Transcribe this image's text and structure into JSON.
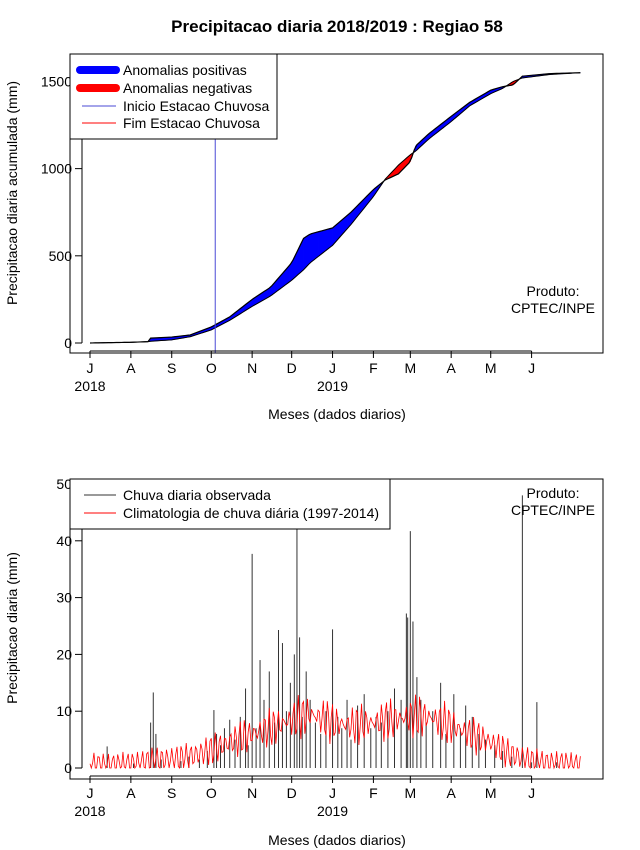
{
  "colors": {
    "positive": "#0000ff",
    "negative": "#ff0000",
    "season_start": "#4a4ad6",
    "season_end": "#ff0000",
    "observed": "#333333",
    "climatology": "#ff0000"
  },
  "chart_data": [
    {
      "type": "area",
      "title": "Precipitacao diaria 2018/2019 : Regiao 58",
      "xlabel": "Meses (dados diarios)",
      "ylabel": "Precipitacao diaria acumulada (mm)",
      "x_start": "2018-07-01",
      "x_end": "2019-07-10",
      "ylim": [
        0,
        1600
      ],
      "yticks": [
        0,
        500,
        1000,
        1500
      ],
      "xticks": [
        {
          "label": "J",
          "date": "2018-07-01"
        },
        {
          "label": "A",
          "date": "2018-08-01"
        },
        {
          "label": "S",
          "date": "2018-09-01"
        },
        {
          "label": "O",
          "date": "2018-10-01"
        },
        {
          "label": "N",
          "date": "2018-11-01"
        },
        {
          "label": "D",
          "date": "2018-12-01"
        },
        {
          "label": "J",
          "date": "2019-01-01"
        },
        {
          "label": "F",
          "date": "2019-02-01"
        },
        {
          "label": "M",
          "date": "2019-03-01"
        },
        {
          "label": "A",
          "date": "2019-04-01"
        },
        {
          "label": "M",
          "date": "2019-05-01"
        },
        {
          "label": "J",
          "date": "2019-06-01"
        }
      ],
      "year_labels": [
        {
          "label": "2018",
          "date": "2018-07-01"
        },
        {
          "label": "2019",
          "date": "2019-01-01"
        }
      ],
      "legend": [
        {
          "label": "Anomalias positivas",
          "style": "thick",
          "color": "#0000ff"
        },
        {
          "label": "Anomalias negativas",
          "style": "thick",
          "color": "#ff0000"
        },
        {
          "label": "Inicio Estacao Chuvosa",
          "style": "thin",
          "color": "#4a4ad6"
        },
        {
          "label": "Fim Estacao Chuvosa",
          "style": "thin",
          "color": "#ff0000"
        }
      ],
      "legend_position": "top-left",
      "annotation": [
        "Produto:",
        "CPTEC/INPE"
      ],
      "season_start": "2018-10-04",
      "observed_cumulative": [
        [
          "2018-07-01",
          0
        ],
        [
          "2018-07-15",
          2
        ],
        [
          "2018-08-01",
          4
        ],
        [
          "2018-08-15",
          8
        ],
        [
          "2018-08-16",
          28
        ],
        [
          "2018-09-01",
          34
        ],
        [
          "2018-09-15",
          46
        ],
        [
          "2018-10-01",
          92
        ],
        [
          "2018-10-15",
          150
        ],
        [
          "2018-11-01",
          250
        ],
        [
          "2018-11-15",
          320
        ],
        [
          "2018-12-01",
          460
        ],
        [
          "2018-12-10",
          600
        ],
        [
          "2018-12-15",
          625
        ],
        [
          "2019-01-01",
          660
        ],
        [
          "2019-01-15",
          750
        ],
        [
          "2019-02-01",
          880
        ],
        [
          "2019-02-10",
          935
        ],
        [
          "2019-02-20",
          970
        ],
        [
          "2019-03-01",
          1040
        ],
        [
          "2019-03-05",
          1130
        ],
        [
          "2019-03-15",
          1200
        ],
        [
          "2019-04-01",
          1300
        ],
        [
          "2019-04-15",
          1380
        ],
        [
          "2019-05-01",
          1450
        ],
        [
          "2019-05-10",
          1470
        ],
        [
          "2019-05-18",
          1480
        ],
        [
          "2019-05-25",
          1530
        ],
        [
          "2019-06-15",
          1545
        ],
        [
          "2019-07-08",
          1550
        ]
      ],
      "climatology_cumulative": [
        [
          "2018-07-01",
          0
        ],
        [
          "2018-07-15",
          2
        ],
        [
          "2018-08-01",
          4
        ],
        [
          "2018-08-15",
          8
        ],
        [
          "2018-08-16",
          10
        ],
        [
          "2018-09-01",
          18
        ],
        [
          "2018-09-15",
          36
        ],
        [
          "2018-10-01",
          75
        ],
        [
          "2018-10-15",
          130
        ],
        [
          "2018-11-01",
          210
        ],
        [
          "2018-11-15",
          270
        ],
        [
          "2018-12-01",
          360
        ],
        [
          "2018-12-10",
          420
        ],
        [
          "2018-12-15",
          460
        ],
        [
          "2019-01-01",
          560
        ],
        [
          "2019-01-15",
          680
        ],
        [
          "2019-02-01",
          840
        ],
        [
          "2019-02-10",
          940
        ],
        [
          "2019-02-20",
          1020
        ],
        [
          "2019-03-01",
          1080
        ],
        [
          "2019-03-05",
          1100
        ],
        [
          "2019-03-15",
          1170
        ],
        [
          "2019-04-01",
          1270
        ],
        [
          "2019-04-15",
          1360
        ],
        [
          "2019-05-01",
          1430
        ],
        [
          "2019-05-10",
          1460
        ],
        [
          "2019-05-18",
          1500
        ],
        [
          "2019-05-25",
          1520
        ],
        [
          "2019-06-15",
          1540
        ],
        [
          "2019-07-08",
          1550
        ]
      ]
    },
    {
      "type": "bar",
      "xlabel": "Meses (dados diarios)",
      "ylabel": "Precipitacao diaria (mm)",
      "x_start": "2018-07-01",
      "x_end": "2019-07-10",
      "ylim": [
        0,
        50
      ],
      "yticks": [
        0,
        10,
        20,
        30,
        40,
        50
      ],
      "xticks": [
        {
          "label": "J",
          "date": "2018-07-01"
        },
        {
          "label": "A",
          "date": "2018-08-01"
        },
        {
          "label": "S",
          "date": "2018-09-01"
        },
        {
          "label": "O",
          "date": "2018-10-01"
        },
        {
          "label": "N",
          "date": "2018-11-01"
        },
        {
          "label": "D",
          "date": "2018-12-01"
        },
        {
          "label": "J",
          "date": "2019-01-01"
        },
        {
          "label": "F",
          "date": "2019-02-01"
        },
        {
          "label": "M",
          "date": "2019-03-01"
        },
        {
          "label": "A",
          "date": "2019-04-01"
        },
        {
          "label": "M",
          "date": "2019-05-01"
        },
        {
          "label": "J",
          "date": "2019-06-01"
        }
      ],
      "year_labels": [
        {
          "label": "2018",
          "date": "2018-07-01"
        },
        {
          "label": "2019",
          "date": "2019-01-01"
        }
      ],
      "legend": [
        {
          "label": "Chuva diaria observada",
          "color": "#333333"
        },
        {
          "label": "Climatologia de chuva diária (1997-2014)",
          "color": "#ff0000"
        }
      ],
      "legend_position": "top-left",
      "annotation": [
        "Produto:",
        "CPTEC/INPE"
      ],
      "observed_daily": [
        [
          "2018-07-14",
          3.8
        ],
        [
          "2018-08-03",
          0.8
        ],
        [
          "2018-08-16",
          8.0
        ],
        [
          "2018-08-18",
          13.3
        ],
        [
          "2018-08-20",
          6.0
        ],
        [
          "2018-08-24",
          1.5
        ],
        [
          "2018-09-08",
          1.2
        ],
        [
          "2018-09-14",
          2.0
        ],
        [
          "2018-09-22",
          1.5
        ],
        [
          "2018-09-28",
          3.0
        ],
        [
          "2018-10-03",
          10.2
        ],
        [
          "2018-10-05",
          6.0
        ],
        [
          "2018-10-08",
          4.0
        ],
        [
          "2018-10-11",
          7.0
        ],
        [
          "2018-10-15",
          8.5
        ],
        [
          "2018-10-19",
          5.0
        ],
        [
          "2018-10-23",
          9.0
        ],
        [
          "2018-10-27",
          14.0
        ],
        [
          "2018-10-29",
          4.0
        ],
        [
          "2018-11-01",
          37.7
        ],
        [
          "2018-11-04",
          7.0
        ],
        [
          "2018-11-07",
          19.0
        ],
        [
          "2018-11-10",
          12.0
        ],
        [
          "2018-11-14",
          17.0
        ],
        [
          "2018-11-18",
          8.0
        ],
        [
          "2018-11-21",
          24.3
        ],
        [
          "2018-11-24",
          22.0
        ],
        [
          "2018-11-27",
          10.0
        ],
        [
          "2018-11-30",
          15.0
        ],
        [
          "2018-12-03",
          20.0
        ],
        [
          "2018-12-05",
          42.0
        ],
        [
          "2018-12-07",
          23.0
        ],
        [
          "2018-12-09",
          9.0
        ],
        [
          "2018-12-12",
          17.0
        ],
        [
          "2018-12-15",
          12.0
        ],
        [
          "2018-12-19",
          8.0
        ],
        [
          "2018-12-23",
          6.0
        ],
        [
          "2018-12-27",
          10.0
        ],
        [
          "2019-01-01",
          24.4
        ],
        [
          "2019-01-05",
          9.0
        ],
        [
          "2019-01-08",
          7.0
        ],
        [
          "2019-01-12",
          12.0
        ],
        [
          "2019-01-15",
          5.0
        ],
        [
          "2019-01-20",
          11.0
        ],
        [
          "2019-01-25",
          13.0
        ],
        [
          "2019-01-30",
          7.0
        ],
        [
          "2019-02-03",
          9.0
        ],
        [
          "2019-02-07",
          8.0
        ],
        [
          "2019-02-12",
          10.0
        ],
        [
          "2019-02-17",
          14.0
        ],
        [
          "2019-02-22",
          12.0
        ],
        [
          "2019-02-26",
          27.2
        ],
        [
          "2019-02-27",
          26.5
        ],
        [
          "2019-03-01",
          41.7
        ],
        [
          "2019-03-03",
          25.8
        ],
        [
          "2019-03-06",
          16.0
        ],
        [
          "2019-03-09",
          12.0
        ],
        [
          "2019-03-13",
          8.0
        ],
        [
          "2019-03-18",
          10.0
        ],
        [
          "2019-03-24",
          15.0
        ],
        [
          "2019-03-28",
          6.0
        ],
        [
          "2019-04-03",
          13.0
        ],
        [
          "2019-04-08",
          7.0
        ],
        [
          "2019-04-12",
          11.0
        ],
        [
          "2019-04-17",
          9.0
        ],
        [
          "2019-04-22",
          6.0
        ],
        [
          "2019-04-27",
          5.0
        ],
        [
          "2019-05-04",
          4.0
        ],
        [
          "2019-05-10",
          3.0
        ],
        [
          "2019-05-17",
          2.0
        ],
        [
          "2019-05-25",
          48.0
        ],
        [
          "2019-06-01",
          1.0
        ],
        [
          "2019-06-05",
          11.6
        ],
        [
          "2019-06-20",
          1.0
        ]
      ],
      "climatology_daily": [
        [
          "2018-07-01",
          0.5
        ],
        [
          "2018-07-15",
          0.4
        ],
        [
          "2018-08-01",
          0.6
        ],
        [
          "2018-08-15",
          1.2
        ],
        [
          "2018-09-01",
          1.5
        ],
        [
          "2018-09-15",
          2.0
        ],
        [
          "2018-10-01",
          3.2
        ],
        [
          "2018-10-15",
          4.5
        ],
        [
          "2018-11-01",
          6.0
        ],
        [
          "2018-11-15",
          7.0
        ],
        [
          "2018-12-01",
          8.5
        ],
        [
          "2018-12-15",
          9.5
        ],
        [
          "2019-01-01",
          8.0
        ],
        [
          "2019-01-15",
          7.5
        ],
        [
          "2019-02-01",
          8.0
        ],
        [
          "2019-02-15",
          8.5
        ],
        [
          "2019-03-01",
          9.0
        ],
        [
          "2019-03-15",
          9.0
        ],
        [
          "2019-04-01",
          7.5
        ],
        [
          "2019-04-15",
          6.0
        ],
        [
          "2019-05-01",
          4.5
        ],
        [
          "2019-05-15",
          2.5
        ],
        [
          "2019-06-01",
          1.2
        ],
        [
          "2019-06-15",
          0.8
        ],
        [
          "2019-07-08",
          0.5
        ]
      ]
    }
  ]
}
